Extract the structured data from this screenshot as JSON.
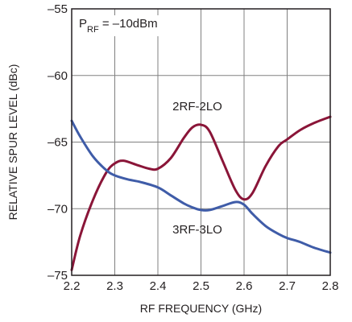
{
  "chart_data": {
    "type": "line",
    "xlabel": "RF FREQUENCY (GHz)",
    "ylabel": "RELATIVE SPUR LEVEL (dBc)",
    "xlim": [
      2.2,
      2.8
    ],
    "ylim": [
      -75,
      -55
    ],
    "xticks": [
      "2.2",
      "2.3",
      "2.4",
      "2.5",
      "2.6",
      "2.7",
      "2.8"
    ],
    "yticks": [
      "–55",
      "–60",
      "–65",
      "–70",
      "–75"
    ],
    "grid": true,
    "condition": {
      "prefix": "P",
      "subscript": "RF",
      "suffix": " = –10dBm"
    },
    "series": [
      {
        "name": "2RF-2LO",
        "color": "#8a1538",
        "x": [
          2.2,
          2.22,
          2.25,
          2.28,
          2.3,
          2.32,
          2.35,
          2.38,
          2.4,
          2.43,
          2.46,
          2.48,
          2.5,
          2.52,
          2.55,
          2.58,
          2.6,
          2.62,
          2.65,
          2.68,
          2.7,
          2.73,
          2.76,
          2.8
        ],
        "y": [
          -74.6,
          -72.0,
          -69.3,
          -67.3,
          -66.6,
          -66.4,
          -66.7,
          -67.0,
          -67.0,
          -66.2,
          -64.7,
          -63.9,
          -63.7,
          -64.2,
          -66.4,
          -68.6,
          -69.3,
          -68.8,
          -66.8,
          -65.3,
          -64.8,
          -64.1,
          -63.6,
          -63.1
        ]
      },
      {
        "name": "3RF-3LO",
        "color": "#3f5ca8",
        "x": [
          2.2,
          2.22,
          2.25,
          2.28,
          2.3,
          2.33,
          2.36,
          2.4,
          2.43,
          2.46,
          2.48,
          2.5,
          2.52,
          2.55,
          2.58,
          2.6,
          2.62,
          2.65,
          2.68,
          2.7,
          2.73,
          2.76,
          2.8
        ],
        "y": [
          -63.4,
          -64.6,
          -66.1,
          -67.1,
          -67.5,
          -67.8,
          -68.0,
          -68.4,
          -69.0,
          -69.6,
          -69.9,
          -70.1,
          -70.1,
          -69.8,
          -69.5,
          -69.7,
          -70.4,
          -71.3,
          -71.9,
          -72.2,
          -72.5,
          -72.9,
          -73.3
        ]
      }
    ],
    "labels": [
      {
        "text": "2RF-2LO",
        "series": "2RF-2LO"
      },
      {
        "text": "3RF-3LO",
        "series": "3RF-3LO"
      }
    ]
  }
}
